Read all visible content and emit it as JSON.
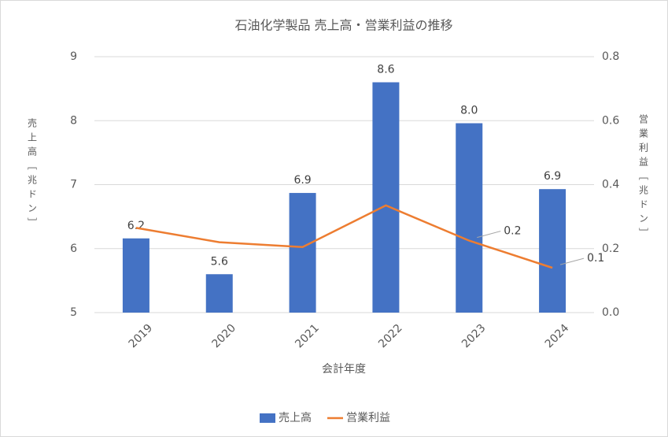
{
  "chart_data": {
    "type": "bar",
    "title": "石油化学製品 売上高・営業利益の推移",
    "x_label": "会計年度",
    "y_label": "売上高［兆ドン］",
    "y2_label": "営業利益［兆ドン］",
    "categories": [
      "2019",
      "2020",
      "2021",
      "2022",
      "2023",
      "2024"
    ],
    "series": [
      {
        "name": "売上高",
        "type": "bar",
        "color": "#4472c4",
        "values": [
          6.16,
          5.6,
          6.87,
          8.6,
          7.96,
          6.93
        ],
        "value_labels": [
          "6.2",
          "5.6",
          "6.9",
          "8.6",
          "8.0",
          "6.9"
        ]
      },
      {
        "name": "営業利益",
        "type": "line",
        "axis": "y2",
        "color": "#ed7d31",
        "values": [
          0.265,
          0.22,
          0.205,
          0.335,
          0.225,
          0.14
        ],
        "value_labels": [
          null,
          null,
          null,
          null,
          "0.2",
          "0.1"
        ]
      }
    ],
    "ylim": [
      5,
      9
    ],
    "yticks": [
      5,
      6,
      7,
      8,
      9
    ],
    "y2lim": [
      0,
      0.8
    ],
    "y2ticks": [
      {
        "value": 0,
        "label": "0.0"
      },
      {
        "value": 0.2,
        "label": "0.2"
      },
      {
        "value": 0.4,
        "label": "0.4"
      },
      {
        "value": 0.6,
        "label": "0.6"
      },
      {
        "value": 0.8,
        "label": "0.8"
      }
    ],
    "grid": true,
    "legend": "bottom"
  }
}
